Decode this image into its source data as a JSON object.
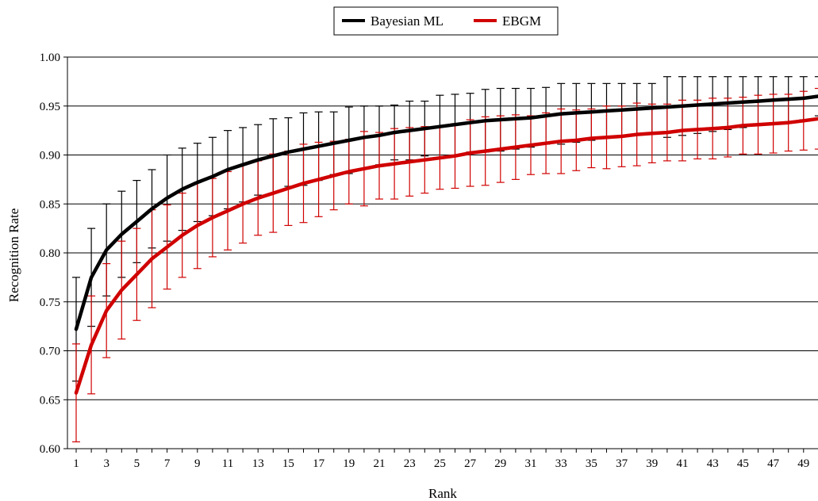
{
  "chart_data": {
    "type": "line",
    "title": "",
    "xlabel": "Rank",
    "ylabel": "Recognition Rate",
    "ylim": [
      0.6,
      1.0
    ],
    "yticks": [
      "0.60",
      "0.65",
      "0.70",
      "0.75",
      "0.80",
      "0.85",
      "0.90",
      "0.95",
      "1.00"
    ],
    "xticks": [
      "1",
      "3",
      "5",
      "7",
      "9",
      "11",
      "13",
      "15",
      "17",
      "19",
      "21",
      "23",
      "25",
      "27",
      "29",
      "31",
      "33",
      "35",
      "37",
      "39",
      "41",
      "43",
      "45",
      "47",
      "49"
    ],
    "xlim": [
      1,
      50
    ],
    "grid": "horizontal",
    "legend_position": "top-center",
    "x": [
      1,
      2,
      3,
      4,
      5,
      6,
      7,
      8,
      9,
      10,
      11,
      12,
      13,
      14,
      15,
      16,
      17,
      18,
      19,
      20,
      21,
      22,
      23,
      24,
      25,
      26,
      27,
      28,
      29,
      30,
      31,
      32,
      33,
      34,
      35,
      36,
      37,
      38,
      39,
      40,
      41,
      42,
      43,
      44,
      45,
      46,
      47,
      48,
      49,
      50
    ],
    "series": [
      {
        "name": "Bayesian ML",
        "color": "#000000",
        "values": [
          0.722,
          0.775,
          0.803,
          0.819,
          0.832,
          0.845,
          0.856,
          0.865,
          0.872,
          0.878,
          0.885,
          0.89,
          0.895,
          0.899,
          0.903,
          0.906,
          0.909,
          0.912,
          0.915,
          0.918,
          0.92,
          0.923,
          0.925,
          0.927,
          0.929,
          0.931,
          0.933,
          0.935,
          0.936,
          0.937,
          0.938,
          0.94,
          0.942,
          0.943,
          0.944,
          0.945,
          0.946,
          0.947,
          0.948,
          0.949,
          0.95,
          0.951,
          0.952,
          0.953,
          0.954,
          0.955,
          0.956,
          0.957,
          0.958,
          0.96
        ],
        "error": [
          0.053,
          0.05,
          0.047,
          0.044,
          0.042,
          0.04,
          0.044,
          0.042,
          0.04,
          0.04,
          0.04,
          0.038,
          0.036,
          0.038,
          0.035,
          0.037,
          0.035,
          0.032,
          0.034,
          0.032,
          0.03,
          0.028,
          0.03,
          0.028,
          0.032,
          0.031,
          0.03,
          0.032,
          0.032,
          0.031,
          0.03,
          0.029,
          0.031,
          0.03,
          0.029,
          0.028,
          0.027,
          0.026,
          0.025,
          0.031,
          0.03,
          0.029,
          0.028,
          0.027,
          0.026,
          0.025,
          0.024,
          0.023,
          0.022,
          0.02
        ]
      },
      {
        "name": "EBGM",
        "color": "#d00000",
        "values": [
          0.657,
          0.706,
          0.741,
          0.762,
          0.778,
          0.794,
          0.806,
          0.818,
          0.828,
          0.836,
          0.843,
          0.85,
          0.856,
          0.861,
          0.866,
          0.871,
          0.875,
          0.879,
          0.883,
          0.886,
          0.889,
          0.891,
          0.893,
          0.895,
          0.897,
          0.899,
          0.902,
          0.904,
          0.906,
          0.908,
          0.91,
          0.912,
          0.914,
          0.915,
          0.917,
          0.918,
          0.919,
          0.921,
          0.922,
          0.923,
          0.925,
          0.926,
          0.927,
          0.928,
          0.93,
          0.931,
          0.932,
          0.933,
          0.935,
          0.937
        ],
        "error": [
          0.05,
          0.05,
          0.048,
          0.05,
          0.047,
          0.05,
          0.043,
          0.043,
          0.044,
          0.04,
          0.04,
          0.04,
          0.038,
          0.04,
          0.038,
          0.04,
          0.038,
          0.035,
          0.033,
          0.038,
          0.034,
          0.036,
          0.035,
          0.034,
          0.032,
          0.033,
          0.034,
          0.035,
          0.034,
          0.033,
          0.03,
          0.031,
          0.033,
          0.031,
          0.03,
          0.032,
          0.031,
          0.032,
          0.03,
          0.029,
          0.031,
          0.03,
          0.031,
          0.03,
          0.029,
          0.03,
          0.03,
          0.029,
          0.03,
          0.031
        ]
      }
    ]
  }
}
